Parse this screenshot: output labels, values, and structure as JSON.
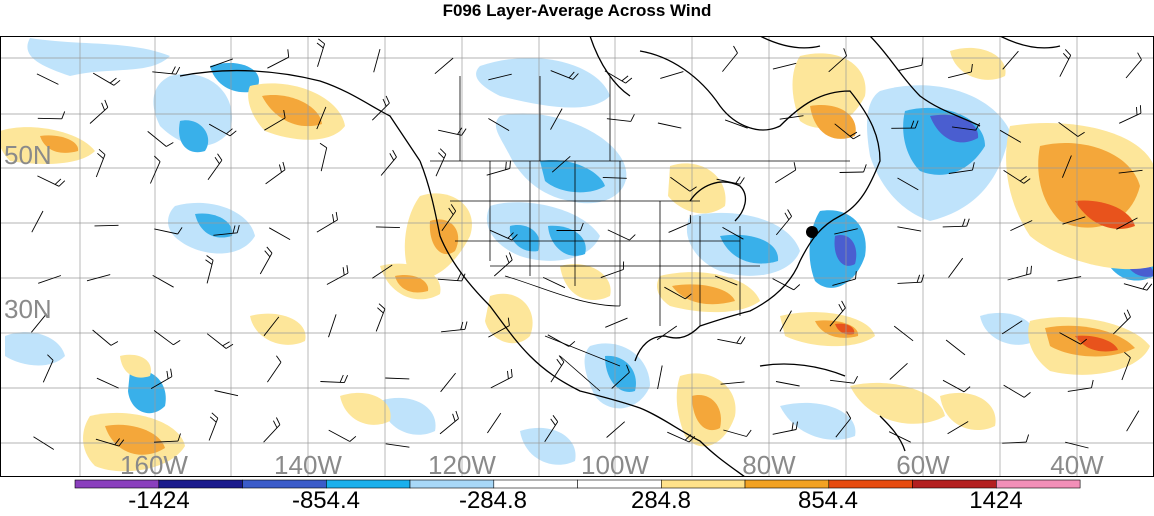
{
  "title": "F096 Layer-Average Across Wind",
  "lat_labels": [
    "50N",
    "30N"
  ],
  "lon_labels": [
    "160W",
    "140W",
    "120W",
    "100W",
    "80W",
    "60W",
    "40W"
  ],
  "colorbar": {
    "colors": [
      "#8a3fbd",
      "#1a1a8c",
      "#3a5bc9",
      "#1ab0ec",
      "#a8d8f8",
      "#ffffff",
      "#ffffff",
      "#ffe28a",
      "#f2a223",
      "#e64b0f",
      "#b31f1f",
      "#f28fb8"
    ],
    "labels": [
      "-1424",
      "-854.4",
      "-284.8",
      "284.8",
      "854.4",
      "1424"
    ]
  },
  "legend_colors": {
    "negative_light": "#bfe3fb",
    "negative_mid": "#39b0ea",
    "negative_dark": "#4a5ed0",
    "positive_light": "#fde69a",
    "positive_mid": "#f4a73a",
    "positive_dark": "#e8531c"
  }
}
